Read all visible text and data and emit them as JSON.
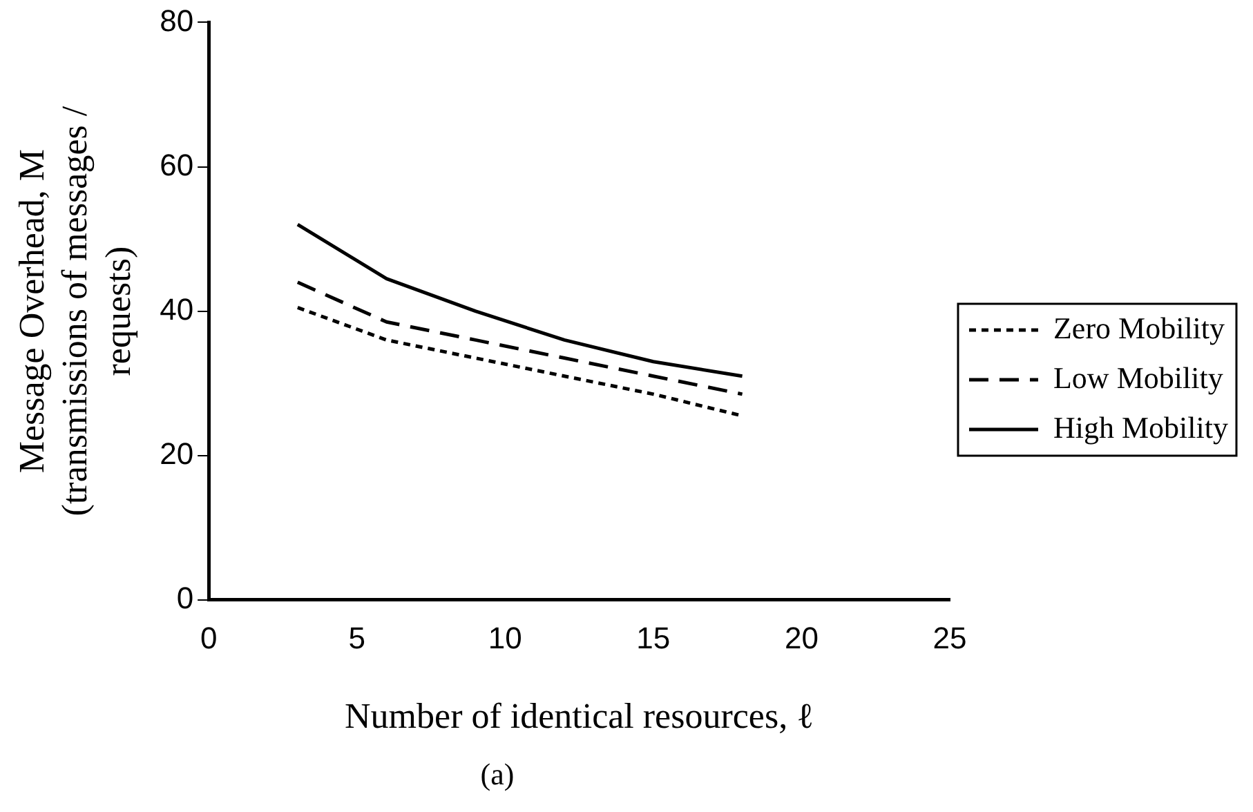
{
  "chart_data": {
    "type": "line",
    "xlabel": "Number of identical resources, ℓ",
    "ylabel": "Message Overhead, M\n(transmissions of messages /\nrequests)",
    "annotations": [
      "(a)"
    ],
    "x": [
      3,
      6,
      9,
      12,
      15,
      18
    ],
    "series": [
      {
        "name": "Zero Mobility",
        "color": "#000000",
        "line_style": "dotted",
        "values": [
          40.5,
          36,
          33.5,
          31,
          28.5,
          25.5
        ]
      },
      {
        "name": "Low Mobility",
        "color": "#000000",
        "line_style": "dashed",
        "values": [
          44,
          38.5,
          36,
          33.5,
          31,
          28.5
        ]
      },
      {
        "name": "High Mobility",
        "color": "#000000",
        "line_style": "solid",
        "values": [
          52,
          44.5,
          40,
          36,
          33,
          31
        ]
      }
    ],
    "xlim": [
      0,
      25
    ],
    "xticks": [
      0,
      5,
      10,
      15,
      20,
      25
    ],
    "ylim": [
      0,
      80
    ],
    "yticks": [
      0,
      20,
      40,
      60,
      80
    ],
    "grid": false,
    "legend": "right",
    "marker": "none"
  }
}
